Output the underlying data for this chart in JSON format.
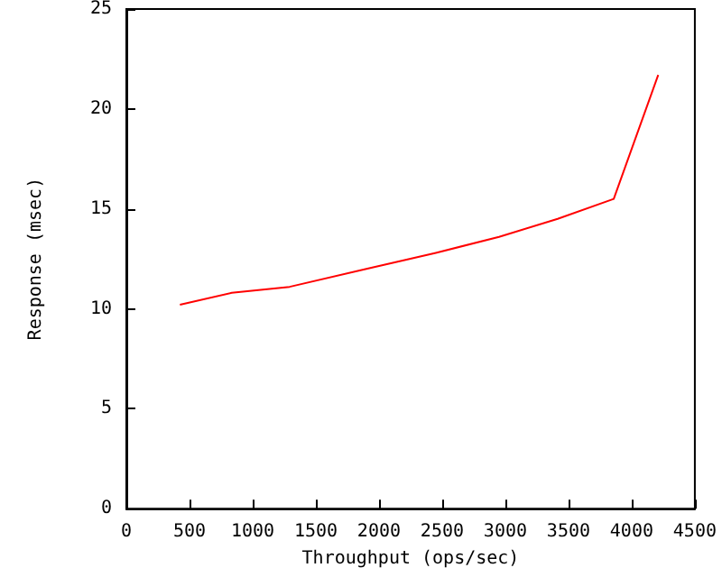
{
  "chart_data": {
    "type": "line",
    "xlabel": "Throughput (ops/sec)",
    "ylabel": "Response (msec)",
    "x": [
      424,
      834,
      1292,
      1900,
      2450,
      2950,
      3414,
      3858,
      4210
    ],
    "series": [
      {
        "color": "#ff0000",
        "values": [
          10.2,
          10.8,
          11.1,
          12.0,
          12.8,
          13.6,
          14.5,
          15.5,
          21.7
        ]
      }
    ],
    "xlim": [
      0,
      4500
    ],
    "xticks": [
      0,
      500,
      1000,
      1500,
      2000,
      2500,
      3000,
      3500,
      4000,
      4500
    ],
    "ylim": [
      0,
      25
    ],
    "yticks": [
      0,
      5,
      10,
      15,
      20,
      25
    ],
    "grid": false,
    "marker": "none",
    "line_style": "solid"
  }
}
